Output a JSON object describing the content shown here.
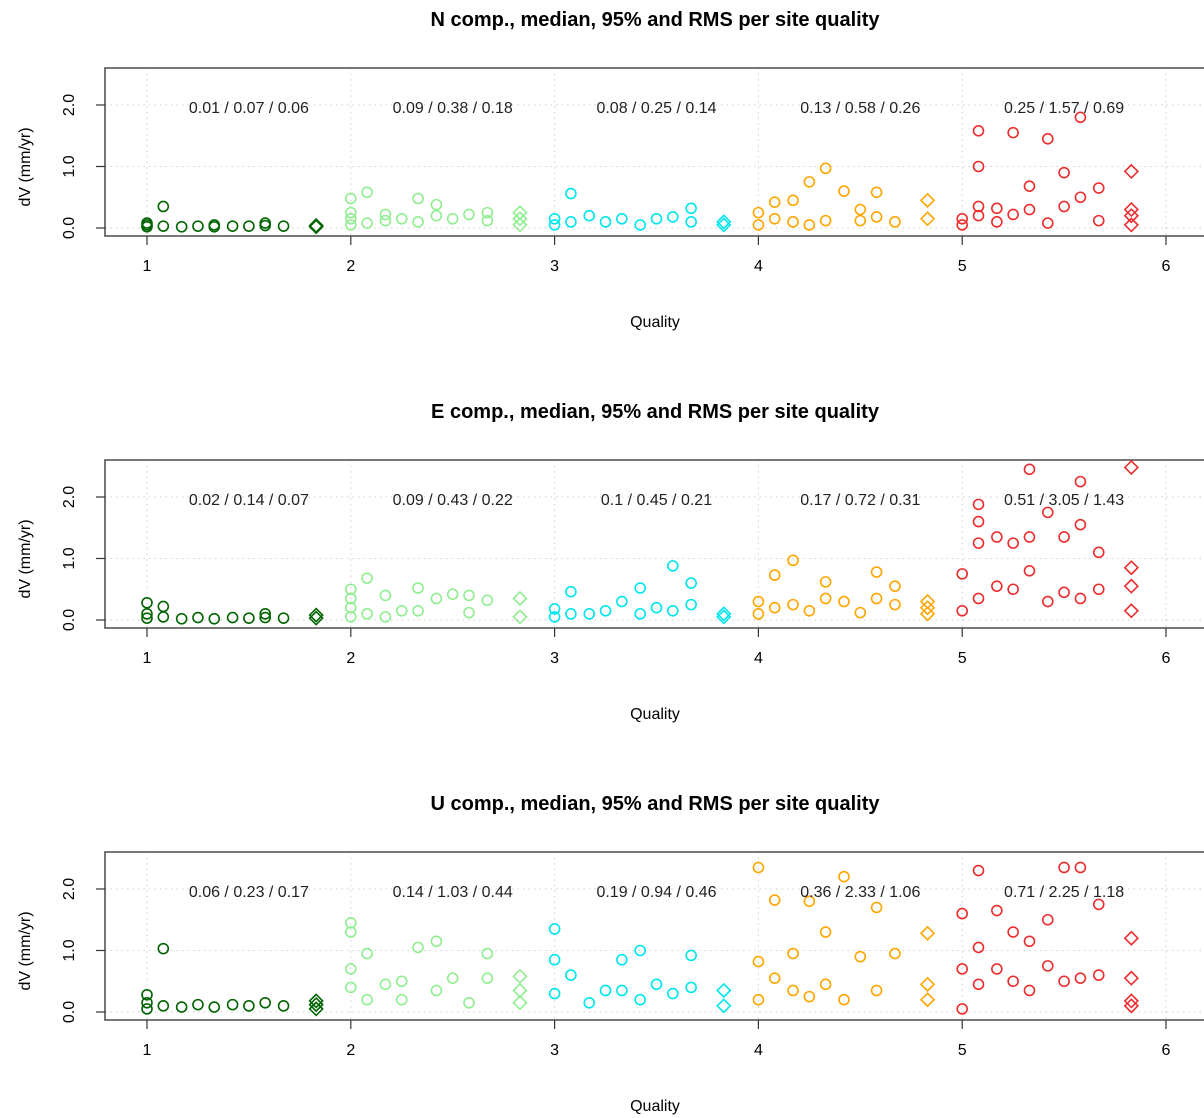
{
  "chart_data": [
    {
      "type": "scatter",
      "title": "N comp., median, 95% and RMS per site quality",
      "xlabel": "Quality",
      "ylabel": "dV (mm/yr)",
      "xlim": [
        1,
        6
      ],
      "ylim": [
        0,
        2.5
      ],
      "xticks": [
        "1",
        "2",
        "3",
        "4",
        "5",
        "6"
      ],
      "yticks": [
        "0.0",
        "1.0",
        "2.0"
      ],
      "grid": true,
      "stats": [
        "0.01 / 0.07 / 0.06",
        "0.09 / 0.38 / 0.18",
        "0.08 / 0.25 / 0.14",
        "0.13 / 0.58 / 0.26",
        "0.25 / 1.57 / 0.69"
      ],
      "series": [
        {
          "color": "#006400",
          "marker": "circle",
          "x": [
            1.0,
            1.0,
            1.0,
            1.08,
            1.08,
            1.17,
            1.25,
            1.33,
            1.33,
            1.42,
            1.5,
            1.58,
            1.58,
            1.67
          ],
          "y": [
            0.02,
            0.05,
            0.08,
            0.03,
            0.35,
            0.02,
            0.03,
            0.02,
            0.05,
            0.03,
            0.03,
            0.04,
            0.08,
            0.03
          ]
        },
        {
          "color": "#006400",
          "marker": "diamond",
          "x": [
            1.83,
            1.83
          ],
          "y": [
            0.02,
            0.04
          ]
        },
        {
          "color": "#90EE90",
          "marker": "circle",
          "x": [
            2.0,
            2.0,
            2.0,
            2.0,
            2.08,
            2.08,
            2.17,
            2.17,
            2.25,
            2.33,
            2.33,
            2.42,
            2.42,
            2.5,
            2.58,
            2.67,
            2.67
          ],
          "y": [
            0.05,
            0.15,
            0.25,
            0.48,
            0.08,
            0.58,
            0.12,
            0.22,
            0.15,
            0.1,
            0.48,
            0.2,
            0.38,
            0.15,
            0.22,
            0.12,
            0.25
          ]
        },
        {
          "color": "#90EE90",
          "marker": "diamond",
          "x": [
            2.83,
            2.83,
            2.83
          ],
          "y": [
            0.05,
            0.15,
            0.25
          ]
        },
        {
          "color": "#00E5EE",
          "marker": "circle",
          "x": [
            3.0,
            3.0,
            3.08,
            3.08,
            3.17,
            3.25,
            3.33,
            3.42,
            3.5,
            3.58,
            3.67,
            3.67
          ],
          "y": [
            0.05,
            0.15,
            0.1,
            0.56,
            0.2,
            0.1,
            0.15,
            0.05,
            0.15,
            0.18,
            0.1,
            0.32
          ]
        },
        {
          "color": "#00E5EE",
          "marker": "diamond",
          "x": [
            3.83,
            3.83
          ],
          "y": [
            0.05,
            0.1
          ]
        },
        {
          "color": "#FFA500",
          "marker": "circle",
          "x": [
            4.0,
            4.0,
            4.08,
            4.08,
            4.17,
            4.17,
            4.25,
            4.25,
            4.33,
            4.33,
            4.42,
            4.5,
            4.5,
            4.58,
            4.58,
            4.67
          ],
          "y": [
            0.05,
            0.25,
            0.15,
            0.42,
            0.1,
            0.45,
            0.05,
            0.75,
            0.12,
            0.97,
            0.6,
            0.12,
            0.3,
            0.18,
            0.58,
            0.1
          ]
        },
        {
          "color": "#FFA500",
          "marker": "diamond",
          "x": [
            4.83,
            4.83
          ],
          "y": [
            0.15,
            0.45
          ]
        },
        {
          "color": "#EE2C2C",
          "marker": "circle",
          "x": [
            5.0,
            5.0,
            5.08,
            5.08,
            5.08,
            5.08,
            5.17,
            5.17,
            5.25,
            5.25,
            5.33,
            5.33,
            5.42,
            5.42,
            5.5,
            5.5,
            5.58,
            5.58,
            5.67,
            5.67
          ],
          "y": [
            0.05,
            0.15,
            0.2,
            0.35,
            1.0,
            1.58,
            0.1,
            0.32,
            0.22,
            1.55,
            0.3,
            0.68,
            0.08,
            1.45,
            0.35,
            0.9,
            0.5,
            1.8,
            0.12,
            0.65
          ]
        },
        {
          "color": "#EE2C2C",
          "marker": "diamond",
          "x": [
            5.83,
            5.83,
            5.83,
            5.83
          ],
          "y": [
            0.05,
            0.2,
            0.3,
            0.92
          ]
        }
      ]
    },
    {
      "type": "scatter",
      "title": "E comp., median, 95% and RMS per site quality",
      "xlabel": "Quality",
      "ylabel": "dV (mm/yr)",
      "xlim": [
        1,
        6
      ],
      "ylim": [
        0,
        2.5
      ],
      "xticks": [
        "1",
        "2",
        "3",
        "4",
        "5",
        "6"
      ],
      "yticks": [
        "0.0",
        "1.0",
        "2.0"
      ],
      "grid": true,
      "stats": [
        "0.02 / 0.14 / 0.07",
        "0.09 / 0.43 / 0.22",
        "0.1 / 0.45 / 0.21",
        "0.17 / 0.72 / 0.31",
        "0.51 / 3.05 / 1.43"
      ],
      "series": [
        {
          "color": "#006400",
          "marker": "circle",
          "x": [
            1.0,
            1.0,
            1.0,
            1.08,
            1.08,
            1.17,
            1.25,
            1.33,
            1.42,
            1.5,
            1.58,
            1.58,
            1.67
          ],
          "y": [
            0.03,
            0.1,
            0.28,
            0.05,
            0.22,
            0.02,
            0.04,
            0.02,
            0.04,
            0.03,
            0.04,
            0.1,
            0.03
          ]
        },
        {
          "color": "#006400",
          "marker": "diamond",
          "x": [
            1.83,
            1.83
          ],
          "y": [
            0.03,
            0.08
          ]
        },
        {
          "color": "#90EE90",
          "marker": "circle",
          "x": [
            2.0,
            2.0,
            2.0,
            2.0,
            2.08,
            2.08,
            2.17,
            2.17,
            2.25,
            2.33,
            2.33,
            2.42,
            2.5,
            2.58,
            2.58,
            2.67
          ],
          "y": [
            0.05,
            0.2,
            0.35,
            0.5,
            0.1,
            0.68,
            0.05,
            0.4,
            0.15,
            0.15,
            0.52,
            0.35,
            0.42,
            0.12,
            0.4,
            0.32
          ]
        },
        {
          "color": "#90EE90",
          "marker": "diamond",
          "x": [
            2.83,
            2.83
          ],
          "y": [
            0.05,
            0.35
          ]
        },
        {
          "color": "#00E5EE",
          "marker": "circle",
          "x": [
            3.0,
            3.0,
            3.08,
            3.08,
            3.17,
            3.25,
            3.33,
            3.42,
            3.42,
            3.5,
            3.58,
            3.58,
            3.67,
            3.67
          ],
          "y": [
            0.05,
            0.18,
            0.1,
            0.46,
            0.1,
            0.15,
            0.3,
            0.1,
            0.52,
            0.2,
            0.15,
            0.88,
            0.25,
            0.6
          ]
        },
        {
          "color": "#00E5EE",
          "marker": "diamond",
          "x": [
            3.83,
            3.83
          ],
          "y": [
            0.05,
            0.1
          ]
        },
        {
          "color": "#FFA500",
          "marker": "circle",
          "x": [
            4.0,
            4.0,
            4.08,
            4.08,
            4.17,
            4.17,
            4.25,
            4.33,
            4.33,
            4.42,
            4.5,
            4.58,
            4.58,
            4.67,
            4.67
          ],
          "y": [
            0.1,
            0.3,
            0.2,
            0.73,
            0.25,
            0.97,
            0.15,
            0.35,
            0.62,
            0.3,
            0.12,
            0.35,
            0.78,
            0.25,
            0.55
          ]
        },
        {
          "color": "#FFA500",
          "marker": "diamond",
          "x": [
            4.83,
            4.83,
            4.83
          ],
          "y": [
            0.1,
            0.2,
            0.3
          ]
        },
        {
          "color": "#EE2C2C",
          "marker": "circle",
          "x": [
            5.0,
            5.0,
            5.08,
            5.08,
            5.08,
            5.08,
            5.17,
            5.17,
            5.25,
            5.25,
            5.33,
            5.33,
            5.33,
            5.42,
            5.42,
            5.5,
            5.5,
            5.58,
            5.58,
            5.58,
            5.67,
            5.67
          ],
          "y": [
            0.15,
            0.75,
            0.35,
            1.25,
            1.6,
            1.88,
            0.55,
            1.35,
            0.5,
            1.25,
            0.8,
            1.35,
            2.45,
            0.3,
            1.75,
            0.45,
            1.35,
            0.35,
            1.55,
            2.25,
            0.5,
            1.1
          ]
        },
        {
          "color": "#EE2C2C",
          "marker": "diamond",
          "x": [
            5.83,
            5.83,
            5.83,
            5.83
          ],
          "y": [
            0.15,
            0.55,
            0.85,
            2.48
          ]
        }
      ]
    },
    {
      "type": "scatter",
      "title": "U comp., median, 95% and RMS per site quality",
      "xlabel": "Quality",
      "ylabel": "dV (mm/yr)",
      "xlim": [
        1,
        6
      ],
      "ylim": [
        0,
        2.5
      ],
      "xticks": [
        "1",
        "2",
        "3",
        "4",
        "5",
        "6"
      ],
      "yticks": [
        "0.0",
        "1.0",
        "2.0"
      ],
      "grid": true,
      "stats": [
        "0.06 / 0.23 / 0.17",
        "0.14 / 1.03 / 0.44",
        "0.19 / 0.94 / 0.46",
        "0.36 / 2.33 / 1.06",
        "0.71 / 2.25 / 1.18"
      ],
      "series": [
        {
          "color": "#006400",
          "marker": "circle",
          "x": [
            1.0,
            1.0,
            1.0,
            1.08,
            1.08,
            1.17,
            1.25,
            1.33,
            1.42,
            1.5,
            1.58,
            1.67
          ],
          "y": [
            0.05,
            0.15,
            0.28,
            0.1,
            1.03,
            0.08,
            0.12,
            0.08,
            0.12,
            0.1,
            0.15,
            0.1
          ]
        },
        {
          "color": "#006400",
          "marker": "diamond",
          "x": [
            1.83,
            1.83,
            1.83
          ],
          "y": [
            0.05,
            0.12,
            0.18
          ]
        },
        {
          "color": "#90EE90",
          "marker": "circle",
          "x": [
            2.0,
            2.0,
            2.0,
            2.0,
            2.08,
            2.08,
            2.17,
            2.25,
            2.25,
            2.33,
            2.42,
            2.42,
            2.5,
            2.58,
            2.67,
            2.67
          ],
          "y": [
            0.4,
            0.7,
            1.3,
            1.45,
            0.2,
            0.95,
            0.45,
            0.2,
            0.5,
            1.05,
            0.35,
            1.15,
            0.55,
            0.15,
            0.55,
            0.95
          ]
        },
        {
          "color": "#90EE90",
          "marker": "diamond",
          "x": [
            2.83,
            2.83,
            2.83
          ],
          "y": [
            0.15,
            0.35,
            0.58
          ]
        },
        {
          "color": "#00E5EE",
          "marker": "circle",
          "x": [
            3.0,
            3.0,
            3.0,
            3.08,
            3.17,
            3.25,
            3.33,
            3.33,
            3.42,
            3.42,
            3.5,
            3.58,
            3.67,
            3.67
          ],
          "y": [
            0.3,
            0.85,
            1.35,
            0.6,
            0.15,
            0.35,
            0.35,
            0.85,
            0.2,
            1.0,
            0.45,
            0.3,
            0.4,
            0.92
          ]
        },
        {
          "color": "#00E5EE",
          "marker": "diamond",
          "x": [
            3.83,
            3.83
          ],
          "y": [
            0.1,
            0.35
          ]
        },
        {
          "color": "#FFA500",
          "marker": "circle",
          "x": [
            4.0,
            4.0,
            4.0,
            4.08,
            4.08,
            4.17,
            4.17,
            4.25,
            4.25,
            4.33,
            4.33,
            4.42,
            4.42,
            4.5,
            4.58,
            4.58,
            4.67
          ],
          "y": [
            0.2,
            0.82,
            2.35,
            0.55,
            1.82,
            0.35,
            0.95,
            0.25,
            1.8,
            0.45,
            1.3,
            0.2,
            2.2,
            0.9,
            0.35,
            1.7,
            0.95
          ]
        },
        {
          "color": "#FFA500",
          "marker": "diamond",
          "x": [
            4.83,
            4.83,
            4.83
          ],
          "y": [
            0.2,
            0.45,
            1.28
          ]
        },
        {
          "color": "#EE2C2C",
          "marker": "circle",
          "x": [
            5.0,
            5.0,
            5.0,
            5.08,
            5.08,
            5.08,
            5.17,
            5.17,
            5.25,
            5.25,
            5.33,
            5.33,
            5.42,
            5.42,
            5.5,
            5.5,
            5.58,
            5.58,
            5.67,
            5.67
          ],
          "y": [
            0.05,
            0.7,
            1.6,
            0.45,
            1.05,
            2.3,
            0.7,
            1.65,
            0.5,
            1.3,
            0.35,
            1.15,
            0.75,
            1.5,
            0.5,
            2.35,
            0.55,
            2.35,
            0.6,
            1.75
          ]
        },
        {
          "color": "#EE2C2C",
          "marker": "diamond",
          "x": [
            5.83,
            5.83,
            5.83,
            5.83
          ],
          "y": [
            0.1,
            0.55,
            1.2,
            0.18
          ]
        }
      ]
    }
  ]
}
